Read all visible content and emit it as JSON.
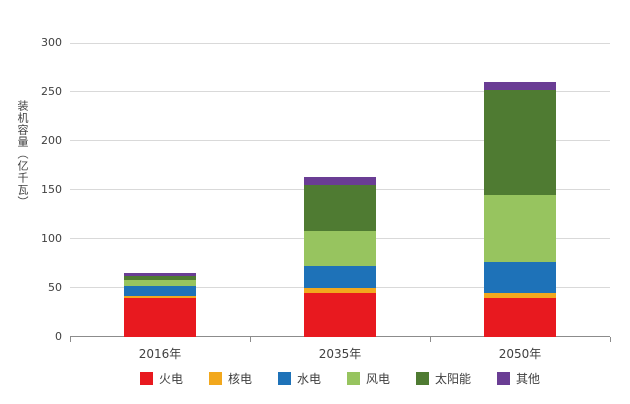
{
  "chart_data": {
    "type": "bar",
    "stacked": true,
    "title": "",
    "xlabel": "",
    "ylabel": "装机容量（亿千瓦）",
    "ylim": [
      0,
      300
    ],
    "yticks": [
      0,
      50,
      100,
      150,
      200,
      250,
      300
    ],
    "grid": true,
    "legend_position": "bottom",
    "categories": [
      "2016年",
      "2035年",
      "2050年"
    ],
    "series": [
      {
        "name": "火电",
        "color": "#e8191f",
        "values": [
          40,
          45,
          40
        ]
      },
      {
        "name": "核电",
        "color": "#f2a81d",
        "values": [
          2,
          5,
          5
        ]
      },
      {
        "name": "水电",
        "color": "#1e72b8",
        "values": [
          10,
          22,
          32
        ]
      },
      {
        "name": "风电",
        "color": "#97c45f",
        "values": [
          6,
          36,
          68
        ]
      },
      {
        "name": "太阳能",
        "color": "#4f7b32",
        "values": [
          4,
          47,
          107
        ]
      },
      {
        "name": "其他",
        "color": "#6a3d94",
        "values": [
          3,
          8,
          8
        ]
      }
    ]
  }
}
